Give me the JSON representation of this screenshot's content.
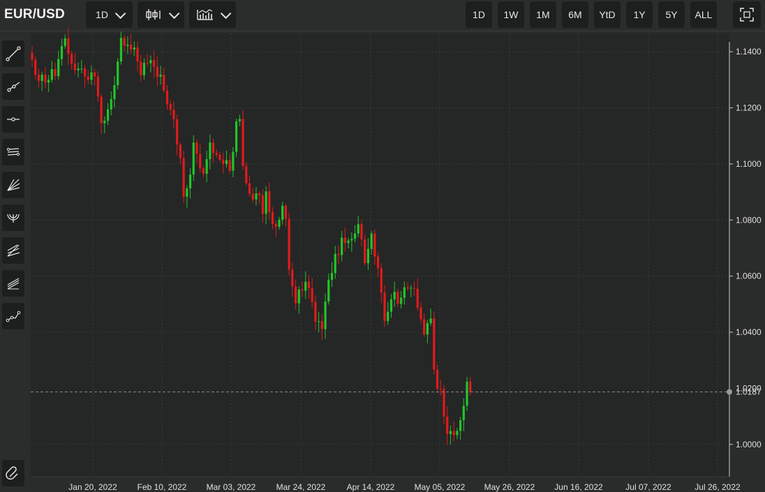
{
  "header": {
    "symbol": "EUR/USD",
    "interval_label": "1D",
    "chart_type_icon": "candlestick-icon",
    "indicator_icon": "indicators-icon",
    "ranges": [
      "1D",
      "1W",
      "1M",
      "6M",
      "YtD",
      "1Y",
      "5Y",
      "ALL"
    ],
    "fullscreen_icon": "fullscreen-icon"
  },
  "toolbar": {
    "tools": [
      "trend-line-icon",
      "ray-icon",
      "horizontal-line-icon",
      "parallel-channel-icon",
      "fan-icon",
      "arc-icon",
      "pitchfork-icon",
      "regression-channel-icon",
      "polyline-icon"
    ],
    "magnet_icon": "magnet-icon"
  },
  "colors": {
    "up": "#22c52a",
    "down": "#e01b1b",
    "background": "#252626",
    "grid": "#3a3b3b",
    "price_line": "#8c8c8c"
  },
  "chart_data": {
    "type": "candlestick",
    "title": "EUR/USD",
    "x_tick_labels": [
      "Jan 20, 2022",
      "Feb 10, 2022",
      "Mar 03, 2022",
      "Mar 24, 2022",
      "Apr 14, 2022",
      "May 05, 2022",
      "May 26, 2022",
      "Jun 16, 2022",
      "Jul 07, 2022",
      "Jul 26, 2022"
    ],
    "y_ticks": [
      1.0,
      1.04,
      1.06,
      1.08,
      1.1,
      1.12,
      1.14
    ],
    "y_tick_labels": [
      "1.0000",
      "1.0400",
      "1.0600",
      "1.0800",
      "1.1000",
      "1.1200",
      "1.1400"
    ],
    "partial_tick_label": "1.0200",
    "ylim": [
      0.9885,
      1.1465
    ],
    "last_price": 1.0187,
    "last_price_label": "1.0187",
    "grid": true,
    "close_series": [
      1.1372,
      1.1318,
      1.1296,
      1.1318,
      1.129,
      1.13,
      1.1338,
      1.1313,
      1.1374,
      1.142,
      1.1448,
      1.1392,
      1.1358,
      1.1334,
      1.134,
      1.134,
      1.1312,
      1.13,
      1.1326,
      1.1312,
      1.124,
      1.1145,
      1.1154,
      1.1194,
      1.1231,
      1.1281,
      1.1365,
      1.1449,
      1.1421,
      1.1425,
      1.1408,
      1.1415,
      1.1365,
      1.1316,
      1.136,
      1.1359,
      1.137,
      1.1346,
      1.1311,
      1.1318,
      1.1262,
      1.1213,
      1.1193,
      1.1159,
      1.1069,
      1.102,
      1.0883,
      1.0913,
      1.0962,
      1.1076,
      1.1036,
      1.0984,
      1.0965,
      1.1017,
      1.1076,
      1.1039,
      1.1032,
      1.1015,
      1.1,
      1.1013,
      1.0976,
      1.1043,
      1.1152,
      1.116,
      1.0993,
      1.0931,
      1.0894,
      1.0873,
      1.0895,
      1.0888,
      1.0822,
      1.0902,
      1.0829,
      1.0786,
      1.0776,
      1.0801,
      1.0851,
      1.0804,
      1.0623,
      1.0563,
      1.0503,
      1.0552,
      1.0548,
      1.058,
      1.0557,
      1.0508,
      1.0437,
      1.0439,
      1.0411,
      1.0509,
      1.0587,
      1.0611,
      1.0679,
      1.0675,
      1.0737,
      1.0718,
      1.0727,
      1.0733,
      1.0752,
      1.0785,
      1.0731,
      1.0646,
      1.0697,
      1.0752,
      1.067,
      1.0628,
      1.0541,
      1.044,
      1.0473,
      1.0517,
      1.0544,
      1.0501,
      1.0523,
      1.056,
      1.0556,
      1.0558,
      1.0555,
      1.0488,
      1.0446,
      1.0392,
      1.0432,
      1.0449,
      1.0266,
      1.0199,
      1.0198,
      1.0099,
      1.0037,
      1.0047,
      1.0033,
      1.0048,
      1.0086,
      1.0138,
      1.0224,
      1.0187
    ]
  }
}
